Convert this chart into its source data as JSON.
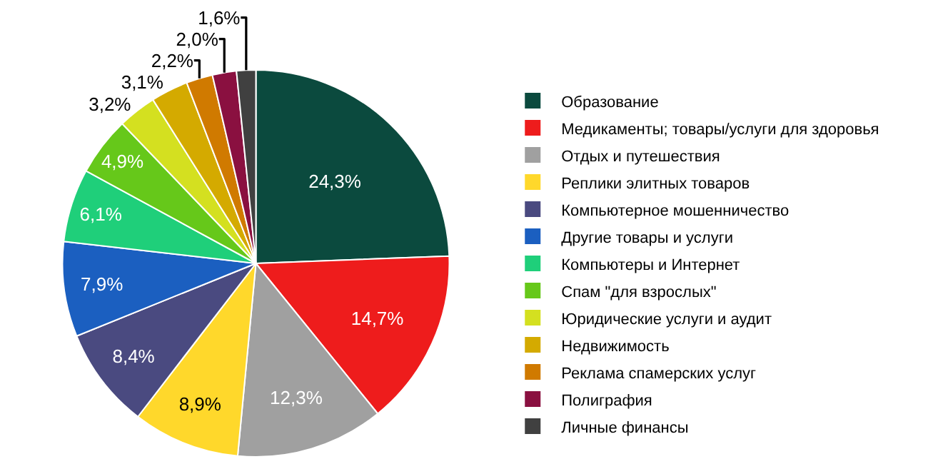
{
  "chart_data": {
    "type": "pie",
    "categories": [
      "Образование",
      "Медикаменты; товары/услуги для здоровья",
      "Отдых и путешествия",
      "Реплики элитных товаров",
      "Компьютерное мошенничество",
      "Другие товары и услуги",
      "Компьютеры и Интернет",
      "Спам \"для взрослых\"",
      "Юридические услуги и аудит",
      "Недвижимость",
      "Реклама спамерских услуг",
      "Полиграфия",
      "Личные финансы"
    ],
    "values": [
      24.3,
      14.7,
      12.3,
      8.9,
      8.4,
      7.9,
      6.1,
      4.9,
      3.2,
      3.1,
      2.2,
      2.0,
      1.6
    ],
    "value_labels": [
      "24,3%",
      "14,7%",
      "12,3%",
      "8,9%",
      "8,4%",
      "7,9%",
      "6,1%",
      "4,9%",
      "3,2%",
      "3,1%",
      "2,2%",
      "2,0%",
      "1,6%"
    ],
    "colors": [
      "#0b4a3e",
      "#ee1c1c",
      "#a0a0a0",
      "#ffd82b",
      "#4a4a80",
      "#1b5fc0",
      "#1fcf7a",
      "#66c81a",
      "#d4e020",
      "#d4aa00",
      "#d07a00",
      "#8a1040",
      "#404040"
    ],
    "legend": "right"
  }
}
